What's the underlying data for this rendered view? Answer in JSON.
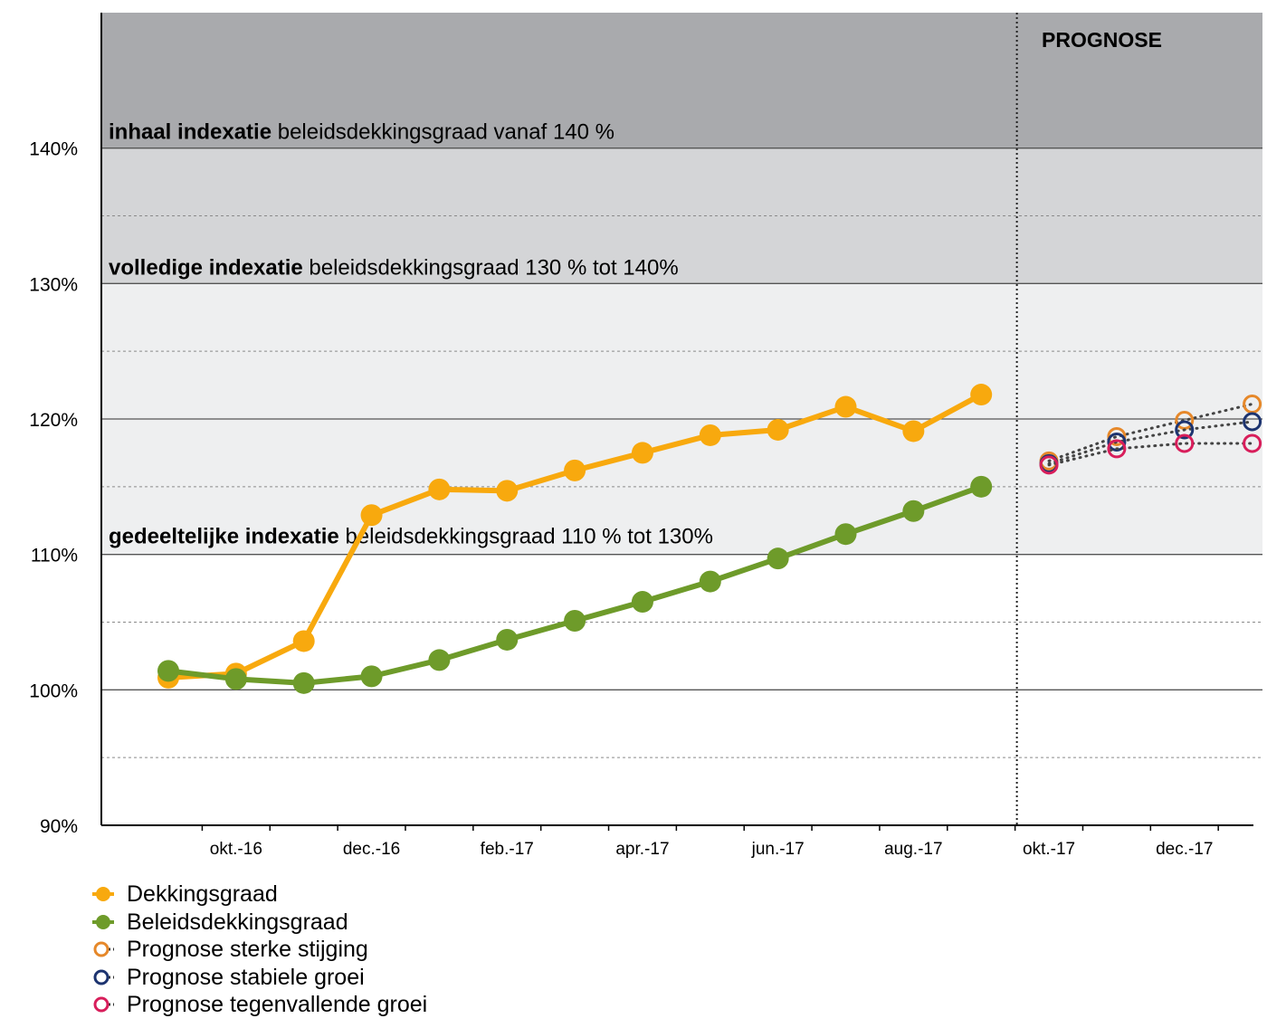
{
  "chart_data": {
    "type": "line",
    "y_tick_labels": [
      "90%",
      "100%",
      "110%",
      "120%",
      "130%",
      "140%"
    ],
    "y_ticks": [
      90,
      100,
      110,
      120,
      130,
      140
    ],
    "ylim": [
      90,
      150
    ],
    "x_tick_labels": [
      {
        "i": 1,
        "label": "okt.-16"
      },
      {
        "i": 3,
        "label": "dec.-16"
      },
      {
        "i": 5,
        "label": "feb.-17"
      },
      {
        "i": 7,
        "label": "apr.-17"
      },
      {
        "i": 9,
        "label": "jun.-17"
      },
      {
        "i": 11,
        "label": "aug.-17"
      },
      {
        "i": 13,
        "label": "okt.-17"
      },
      {
        "i": 15,
        "label": "dec.-17"
      }
    ],
    "grid": {
      "solid": [
        100,
        110,
        120,
        130,
        140
      ],
      "dotted": [
        95,
        105,
        115,
        125,
        135
      ]
    },
    "bands": [
      {
        "from": 140,
        "to": 150,
        "color": "#a9aaad",
        "label_bold": "inhaal indexatie",
        "label_rest": " beleidsdekkingsgraad vanaf 140 %"
      },
      {
        "from": 130,
        "to": 140,
        "color": "#d4d5d7",
        "label_bold": "volledige indexatie",
        "label_rest": " beleidsdekkingsgraad 130 % tot 140%"
      },
      {
        "from": 110,
        "to": 130,
        "color": "#eeeff0",
        "label_bold": "gedeeltelijke indexatie",
        "label_rest": " beleidsdekkingsgraad 110 % tot 130%"
      }
    ],
    "forecast": {
      "label": "PROGNOSE",
      "start_i": 12.5
    },
    "series": [
      {
        "name": "Dekkingsgraad",
        "color": "#f8a90e",
        "style": "solid",
        "x_index": [
          0,
          1,
          2,
          3,
          4,
          5,
          6,
          7,
          8,
          9,
          10,
          11,
          12
        ],
        "values": [
          100.9,
          101.2,
          103.6,
          112.9,
          114.8,
          114.7,
          116.2,
          117.5,
          118.8,
          119.2,
          120.9,
          119.1,
          121.8
        ]
      },
      {
        "name": "Beleidsdekkingsgraad",
        "color": "#6e9b2a",
        "style": "solid",
        "x_index": [
          0,
          1,
          2,
          3,
          4,
          5,
          6,
          7,
          8,
          9,
          10,
          11,
          12
        ],
        "values": [
          101.4,
          100.8,
          100.5,
          101.0,
          102.2,
          103.7,
          105.1,
          106.5,
          108.0,
          109.7,
          111.5,
          113.2,
          115.0
        ]
      },
      {
        "name": "Prognose sterke stijging",
        "color": "#e6882a",
        "style": "hollow",
        "x_index": [
          13,
          14,
          15,
          16
        ],
        "values": [
          116.9,
          118.7,
          119.9,
          121.1
        ]
      },
      {
        "name": "Prognose stabiele groei",
        "color": "#1d3470",
        "style": "hollow",
        "x_index": [
          13,
          14,
          15,
          16
        ],
        "values": [
          116.7,
          118.3,
          119.2,
          119.8
        ]
      },
      {
        "name": "Prognose tegenvallende groei",
        "color": "#d81e5b",
        "style": "hollow",
        "x_index": [
          13,
          14,
          15,
          16
        ],
        "values": [
          116.6,
          117.8,
          118.2,
          118.2
        ]
      }
    ]
  }
}
